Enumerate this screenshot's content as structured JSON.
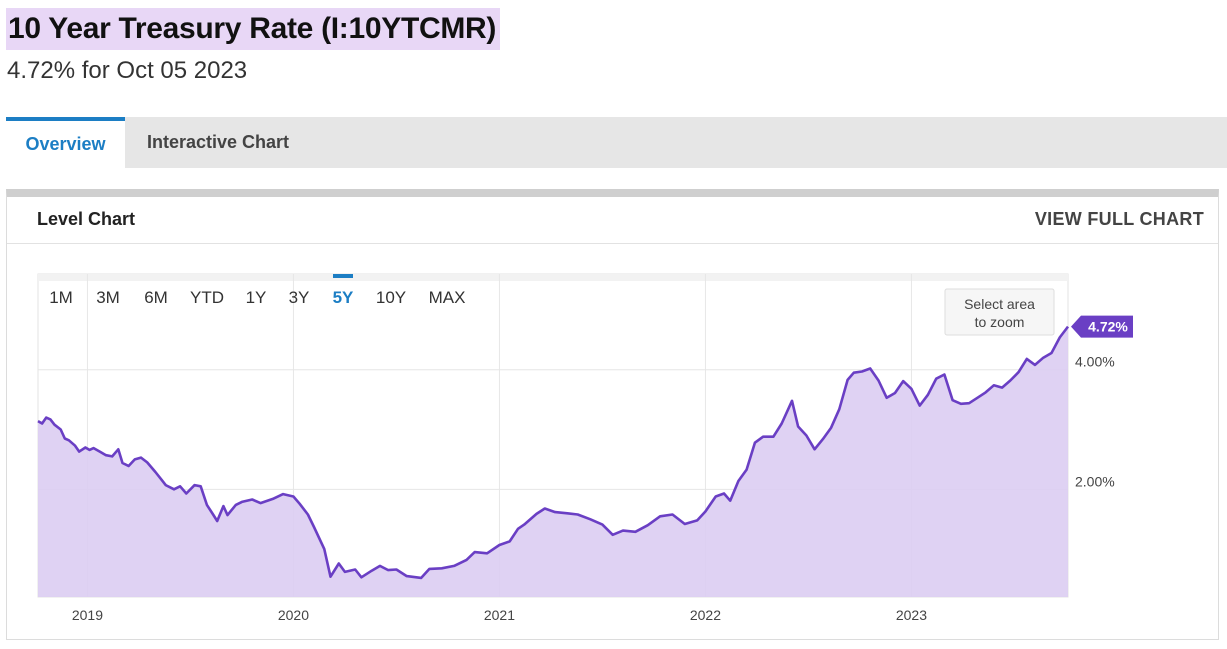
{
  "header": {
    "title": "10 Year Treasury Rate (I:10YTCMR)",
    "subtitle": "4.72% for Oct 05 2023",
    "highlight_color": "#e8d7f6"
  },
  "tabs": [
    {
      "label": "Overview",
      "active": true
    },
    {
      "label": "Interactive Chart",
      "active": false
    }
  ],
  "card": {
    "title": "Level Chart",
    "link": "VIEW FULL CHART"
  },
  "range_buttons": [
    {
      "label": "1M",
      "active": false
    },
    {
      "label": "3M",
      "active": false
    },
    {
      "label": "6M",
      "active": false
    },
    {
      "label": "YTD",
      "active": false
    },
    {
      "label": "1Y",
      "active": false
    },
    {
      "label": "3Y",
      "active": false
    },
    {
      "label": "5Y",
      "active": true
    },
    {
      "label": "10Y",
      "active": false
    },
    {
      "label": "MAX",
      "active": false
    }
  ],
  "zoom_hint": [
    "Select area",
    "to zoom"
  ],
  "colors": {
    "accent": "#1c7ec4",
    "line": "#6a3fc4",
    "fill": "#dccdf2",
    "badge": "#6a3fc4"
  },
  "chart_data": {
    "type": "area",
    "title": "",
    "xlabel": "",
    "ylabel": "",
    "x_ticks": [
      "2019",
      "2020",
      "2021",
      "2022",
      "2023"
    ],
    "x_tick_years": [
      2019,
      2020,
      2021,
      2022,
      2023
    ],
    "y_ticks": [
      2,
      4
    ],
    "y_tick_labels": [
      "2.00%",
      "4.00%"
    ],
    "xlim": [
      2018.76,
      2023.76
    ],
    "ylim": [
      0.2,
      5.6
    ],
    "grid": true,
    "current_value_label": "4.72%",
    "series": [
      {
        "values": [
          [
            2018.76,
            3.14
          ],
          [
            2018.78,
            3.1
          ],
          [
            2018.8,
            3.2
          ],
          [
            2018.82,
            3.17
          ],
          [
            2018.84,
            3.08
          ],
          [
            2018.87,
            3.0
          ],
          [
            2018.89,
            2.85
          ],
          [
            2018.91,
            2.82
          ],
          [
            2018.94,
            2.73
          ],
          [
            2018.96,
            2.63
          ],
          [
            2018.99,
            2.7
          ],
          [
            2019.01,
            2.66
          ],
          [
            2019.03,
            2.69
          ],
          [
            2019.06,
            2.63
          ],
          [
            2019.09,
            2.57
          ],
          [
            2019.12,
            2.55
          ],
          [
            2019.15,
            2.67
          ],
          [
            2019.17,
            2.44
          ],
          [
            2019.2,
            2.39
          ],
          [
            2019.23,
            2.5
          ],
          [
            2019.26,
            2.53
          ],
          [
            2019.29,
            2.45
          ],
          [
            2019.33,
            2.29
          ],
          [
            2019.36,
            2.16
          ],
          [
            2019.38,
            2.07
          ],
          [
            2019.42,
            2.0
          ],
          [
            2019.45,
            2.05
          ],
          [
            2019.48,
            1.93
          ],
          [
            2019.52,
            2.07
          ],
          [
            2019.55,
            2.05
          ],
          [
            2019.58,
            1.74
          ],
          [
            2019.61,
            1.58
          ],
          [
            2019.63,
            1.47
          ],
          [
            2019.66,
            1.72
          ],
          [
            2019.68,
            1.57
          ],
          [
            2019.72,
            1.74
          ],
          [
            2019.75,
            1.79
          ],
          [
            2019.8,
            1.83
          ],
          [
            2019.84,
            1.77
          ],
          [
            2019.9,
            1.84
          ],
          [
            2019.95,
            1.92
          ],
          [
            2020.0,
            1.88
          ],
          [
            2020.03,
            1.76
          ],
          [
            2020.07,
            1.58
          ],
          [
            2020.1,
            1.37
          ],
          [
            2020.15,
            1.0
          ],
          [
            2020.18,
            0.54
          ],
          [
            2020.22,
            0.76
          ],
          [
            2020.25,
            0.62
          ],
          [
            2020.3,
            0.66
          ],
          [
            2020.33,
            0.53
          ],
          [
            2020.38,
            0.64
          ],
          [
            2020.42,
            0.72
          ],
          [
            2020.46,
            0.65
          ],
          [
            2020.5,
            0.66
          ],
          [
            2020.55,
            0.55
          ],
          [
            2020.62,
            0.52
          ],
          [
            2020.66,
            0.67
          ],
          [
            2020.72,
            0.68
          ],
          [
            2020.78,
            0.72
          ],
          [
            2020.84,
            0.82
          ],
          [
            2020.88,
            0.95
          ],
          [
            2020.94,
            0.93
          ],
          [
            2021.0,
            1.07
          ],
          [
            2021.05,
            1.13
          ],
          [
            2021.09,
            1.34
          ],
          [
            2021.12,
            1.41
          ],
          [
            2021.18,
            1.59
          ],
          [
            2021.22,
            1.68
          ],
          [
            2021.27,
            1.62
          ],
          [
            2021.33,
            1.6
          ],
          [
            2021.38,
            1.58
          ],
          [
            2021.44,
            1.5
          ],
          [
            2021.5,
            1.41
          ],
          [
            2021.55,
            1.24
          ],
          [
            2021.6,
            1.31
          ],
          [
            2021.66,
            1.29
          ],
          [
            2021.72,
            1.4
          ],
          [
            2021.78,
            1.55
          ],
          [
            2021.84,
            1.58
          ],
          [
            2021.9,
            1.42
          ],
          [
            2021.96,
            1.48
          ],
          [
            2022.0,
            1.63
          ],
          [
            2022.05,
            1.88
          ],
          [
            2022.09,
            1.93
          ],
          [
            2022.12,
            1.81
          ],
          [
            2022.16,
            2.14
          ],
          [
            2022.2,
            2.33
          ],
          [
            2022.24,
            2.78
          ],
          [
            2022.28,
            2.88
          ],
          [
            2022.33,
            2.88
          ],
          [
            2022.37,
            3.1
          ],
          [
            2022.42,
            3.48
          ],
          [
            2022.45,
            3.05
          ],
          [
            2022.49,
            2.9
          ],
          [
            2022.53,
            2.67
          ],
          [
            2022.57,
            2.84
          ],
          [
            2022.61,
            3.03
          ],
          [
            2022.65,
            3.34
          ],
          [
            2022.69,
            3.83
          ],
          [
            2022.72,
            3.95
          ],
          [
            2022.76,
            3.97
          ],
          [
            2022.8,
            4.02
          ],
          [
            2022.84,
            3.82
          ],
          [
            2022.88,
            3.53
          ],
          [
            2022.92,
            3.61
          ],
          [
            2022.96,
            3.81
          ],
          [
            2023.0,
            3.68
          ],
          [
            2023.04,
            3.4
          ],
          [
            2023.08,
            3.58
          ],
          [
            2023.12,
            3.85
          ],
          [
            2023.16,
            3.92
          ],
          [
            2023.2,
            3.49
          ],
          [
            2023.24,
            3.43
          ],
          [
            2023.28,
            3.44
          ],
          [
            2023.32,
            3.53
          ],
          [
            2023.36,
            3.62
          ],
          [
            2023.4,
            3.74
          ],
          [
            2023.44,
            3.7
          ],
          [
            2023.48,
            3.82
          ],
          [
            2023.52,
            3.96
          ],
          [
            2023.56,
            4.18
          ],
          [
            2023.6,
            4.08
          ],
          [
            2023.64,
            4.2
          ],
          [
            2023.68,
            4.28
          ],
          [
            2023.72,
            4.54
          ],
          [
            2023.76,
            4.72
          ]
        ]
      }
    ]
  }
}
